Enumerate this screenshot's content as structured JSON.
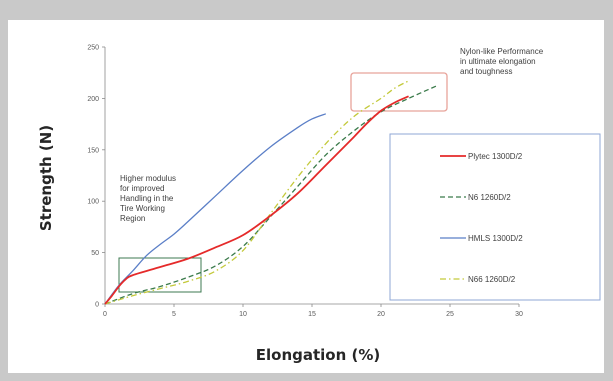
{
  "chart_data": {
    "type": "line",
    "xlabel": "Elongation (%)",
    "ylabel": "Strength (N)",
    "xlim": [
      0,
      30
    ],
    "ylim": [
      0,
      250
    ],
    "x_ticks": [
      "0",
      "5",
      "10",
      "15",
      "20",
      "25",
      "30"
    ],
    "y_ticks": [
      "0",
      "50",
      "100",
      "150",
      "200",
      "250"
    ],
    "grid": false,
    "legend_position": "right",
    "series": [
      {
        "name": "Plytec 1300D/2",
        "color": "#e52a2a",
        "dash": "solid",
        "points": [
          [
            0,
            0
          ],
          [
            0.5,
            8
          ],
          [
            1,
            17
          ],
          [
            1.5,
            24
          ],
          [
            2,
            28
          ],
          [
            4,
            36
          ],
          [
            6,
            44
          ],
          [
            8,
            55
          ],
          [
            10,
            67
          ],
          [
            12,
            86
          ],
          [
            14,
            108
          ],
          [
            16,
            135
          ],
          [
            18,
            162
          ],
          [
            19,
            176
          ],
          [
            20,
            188
          ],
          [
            21,
            196
          ],
          [
            22,
            202
          ]
        ]
      },
      {
        "name": "N6 1260D/2",
        "color": "#3a7a4a",
        "dash": "dash",
        "points": [
          [
            0,
            0
          ],
          [
            2,
            10
          ],
          [
            4,
            17
          ],
          [
            6,
            26
          ],
          [
            8,
            37
          ],
          [
            10,
            56
          ],
          [
            12,
            85
          ],
          [
            14,
            115
          ],
          [
            16,
            145
          ],
          [
            18,
            168
          ],
          [
            20,
            187
          ],
          [
            22,
            200
          ],
          [
            24,
            212
          ]
        ]
      },
      {
        "name": "HMLS 1300D/2",
        "color": "#5b7fc7",
        "dash": "solid",
        "points": [
          [
            0,
            0
          ],
          [
            1,
            18
          ],
          [
            2,
            32
          ],
          [
            3,
            47
          ],
          [
            4,
            58
          ],
          [
            5,
            68
          ],
          [
            6,
            80
          ],
          [
            8,
            105
          ],
          [
            10,
            130
          ],
          [
            12,
            153
          ],
          [
            14,
            172
          ],
          [
            15,
            180
          ],
          [
            16,
            185
          ]
        ]
      },
      {
        "name": "N66 1260D/2",
        "color": "#c3c93a",
        "dash": "dashdot",
        "points": [
          [
            0,
            0
          ],
          [
            2,
            8
          ],
          [
            4,
            15
          ],
          [
            6,
            22
          ],
          [
            8,
            32
          ],
          [
            10,
            52
          ],
          [
            12,
            88
          ],
          [
            14,
            124
          ],
          [
            16,
            156
          ],
          [
            18,
            182
          ],
          [
            20,
            200
          ],
          [
            21,
            210
          ],
          [
            22,
            217
          ]
        ]
      }
    ],
    "annotations": [
      {
        "text": [
          "Higher modulus",
          "for improved",
          "Handling in the",
          "Tire Working",
          "Region"
        ]
      },
      {
        "text": [
          "Nylon-like Performance",
          "in ultimate elongation",
          "and toughness"
        ]
      }
    ]
  }
}
